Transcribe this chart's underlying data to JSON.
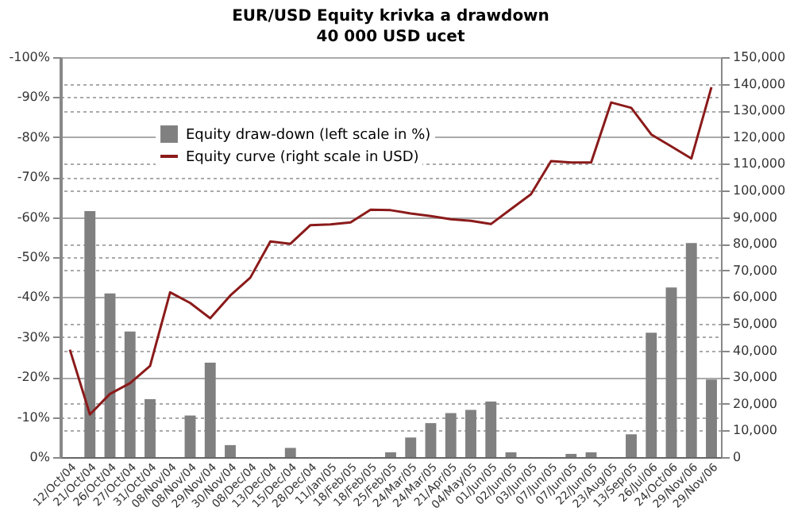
{
  "chart_data": {
    "type": "bar",
    "title": "EUR/USD Equity krivka a drawdown",
    "subtitle": "40 000 USD ucet",
    "categories": [
      "12/Oct/04",
      "21/Oct/04",
      "26/Oct/04",
      "27/Oct/04",
      "31/Oct/04",
      "08/Nov/04",
      "08/Nov/04",
      "29/Nov/04",
      "30/Nov/04",
      "08/Dec/04",
      "13/Dec/04",
      "15/Dec/04",
      "28/Dec/04",
      "11/Jan/05",
      "18/Feb/05",
      "18/Feb/05",
      "25/Feb/05",
      "24/Mar/05",
      "24/Mar/05",
      "21/Apr/05",
      "04/May/05",
      "01/Jun/05",
      "02/Jun/05",
      "03/Jun/05",
      "07/Jun/05",
      "07/Jun/05",
      "22/Jun/05",
      "23/Aug/05",
      "13/Sep/05",
      "26/Jul/06",
      "24/Oct/06",
      "29/Nov/06",
      "29/Nov/06"
    ],
    "series": [
      {
        "name": "Equity draw-down (left scale in %)",
        "axis": "y",
        "color": "#808080",
        "values": [
          null,
          -61.5,
          -40.9,
          -31.4,
          -14.5,
          null,
          -10.4,
          -23.6,
          -3.0,
          null,
          null,
          -2.3,
          null,
          null,
          null,
          null,
          -1.2,
          -4.9,
          -8.5,
          -11.0,
          -11.8,
          -13.9,
          -1.2,
          null,
          null,
          -0.8,
          -1.2,
          null,
          -5.7,
          -31.1,
          -42.4,
          -53.5,
          -19.4
        ]
      },
      {
        "name": "Equity curve (right scale in USD)",
        "type": "line",
        "axis": "y2",
        "color": "#8b1a1a",
        "values": [
          40300,
          16000,
          23700,
          27700,
          34200,
          61800,
          57800,
          52100,
          60600,
          67300,
          80900,
          80000,
          87000,
          87300,
          88000,
          92800,
          92600,
          91400,
          90400,
          89200,
          88600,
          87400,
          93000,
          98600,
          111000,
          110500,
          110500,
          133000,
          131000,
          121000,
          116500,
          112000,
          138700
        ]
      }
    ],
    "ylim": [
      0,
      -100
    ],
    "yticks": [
      {
        "value": 0,
        "label": "0%"
      },
      {
        "value": -10,
        "label": "-10%"
      },
      {
        "value": -20,
        "label": "-20%"
      },
      {
        "value": -30,
        "label": "-30%"
      },
      {
        "value": -40,
        "label": "-40%"
      },
      {
        "value": -50,
        "label": "-50%"
      },
      {
        "value": -60,
        "label": "-60%"
      },
      {
        "value": -70,
        "label": "-70%"
      },
      {
        "value": -80,
        "label": "-80%"
      },
      {
        "value": -90,
        "label": "-90%"
      },
      {
        "value": -100,
        "label": "-100%"
      }
    ],
    "y2lim": [
      0,
      150000
    ],
    "y2ticks": [
      0,
      {
        "value": 10000,
        "label": "10,000"
      },
      {
        "value": 20000,
        "label": "20,000"
      },
      {
        "value": 30000,
        "label": "30,000"
      },
      {
        "value": 40000,
        "label": "40,000"
      },
      {
        "value": 50000,
        "label": "50,000"
      },
      {
        "value": 60000,
        "label": "60,000"
      },
      {
        "value": 70000,
        "label": "70,000"
      },
      {
        "value": 80000,
        "label": "80,000"
      },
      {
        "value": 90000,
        "label": "90,000"
      },
      {
        "value": 100000,
        "label": "100,000"
      },
      {
        "value": 110000,
        "label": "110,000"
      },
      {
        "value": 120000,
        "label": "120,000"
      },
      {
        "value": 130000,
        "label": "130,000"
      },
      {
        "value": 140000,
        "label": "140,000"
      },
      {
        "value": 150000,
        "label": "150,000"
      }
    ],
    "grid": "y",
    "legend": "top left"
  }
}
